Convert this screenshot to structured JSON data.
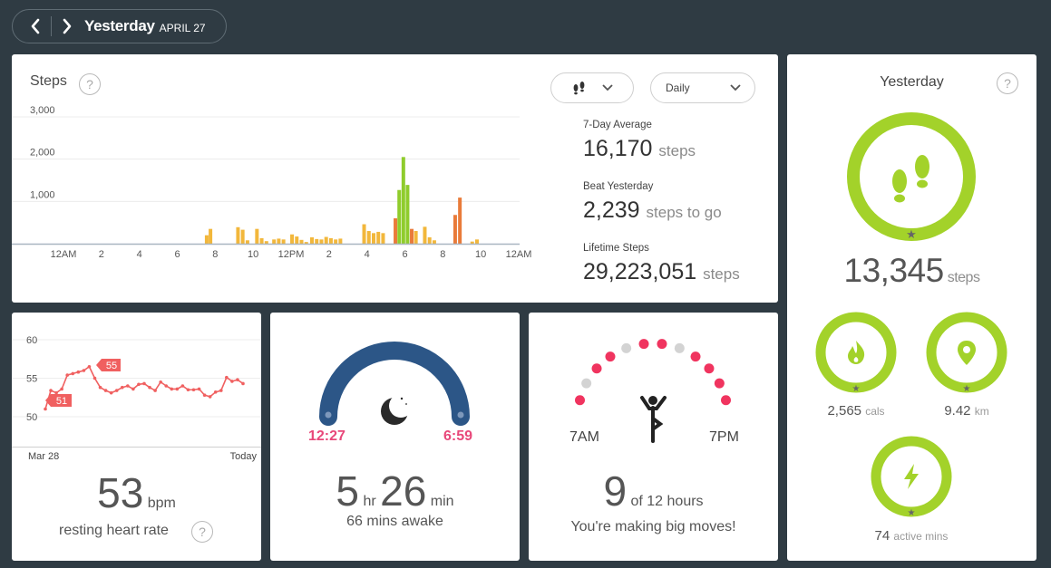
{
  "date_nav": {
    "title": "Yesterday",
    "date": "APRIL 27"
  },
  "steps_card": {
    "title": "Steps",
    "help": "?",
    "period_select": "Daily",
    "stats": [
      {
        "label": "7-Day Average",
        "value": "16,170",
        "unit": "steps"
      },
      {
        "label": "Beat Yesterday",
        "value": "2,239",
        "unit": "steps to go"
      },
      {
        "label": "Lifetime Steps",
        "value": "29,223,051",
        "unit": "steps"
      }
    ],
    "chart_data": {
      "type": "bar",
      "title": "",
      "ylim": [
        0,
        3000
      ],
      "y_ticks": [
        "3,000",
        "2,000",
        "1,000"
      ],
      "x_ticks": [
        "12AM",
        "2",
        "4",
        "6",
        "8",
        "10",
        "12PM",
        "2",
        "4",
        "6",
        "8",
        "10",
        "12AM"
      ],
      "hours_range": [
        0,
        24
      ],
      "colors": {
        "low": "#f2b73b",
        "mid": "#e97b3a",
        "high": "#8fcc2c"
      },
      "bars": [
        {
          "t": 7.55,
          "v": 200
        },
        {
          "t": 7.75,
          "v": 350
        },
        {
          "t": 9.2,
          "v": 390
        },
        {
          "t": 9.45,
          "v": 330
        },
        {
          "t": 9.7,
          "v": 80
        },
        {
          "t": 10.2,
          "v": 350
        },
        {
          "t": 10.45,
          "v": 130
        },
        {
          "t": 10.7,
          "v": 60
        },
        {
          "t": 11.1,
          "v": 100
        },
        {
          "t": 11.35,
          "v": 120
        },
        {
          "t": 11.6,
          "v": 100
        },
        {
          "t": 12.05,
          "v": 220
        },
        {
          "t": 12.3,
          "v": 170
        },
        {
          "t": 12.55,
          "v": 90
        },
        {
          "t": 12.8,
          "v": 40
        },
        {
          "t": 13.1,
          "v": 150
        },
        {
          "t": 13.35,
          "v": 110
        },
        {
          "t": 13.6,
          "v": 100
        },
        {
          "t": 13.85,
          "v": 160
        },
        {
          "t": 14.1,
          "v": 130
        },
        {
          "t": 14.35,
          "v": 100
        },
        {
          "t": 14.6,
          "v": 120
        },
        {
          "t": 15.85,
          "v": 460
        },
        {
          "t": 16.1,
          "v": 300
        },
        {
          "t": 16.35,
          "v": 250
        },
        {
          "t": 16.6,
          "v": 280
        },
        {
          "t": 16.85,
          "v": 250
        },
        {
          "t": 17.5,
          "v": 600,
          "c": "mid"
        },
        {
          "t": 17.7,
          "v": 1270,
          "c": "high"
        },
        {
          "t": 17.92,
          "v": 2050,
          "c": "high"
        },
        {
          "t": 18.14,
          "v": 1390,
          "c": "high"
        },
        {
          "t": 18.36,
          "v": 350,
          "c": "mid"
        },
        {
          "t": 18.58,
          "v": 300
        },
        {
          "t": 19.05,
          "v": 400
        },
        {
          "t": 19.3,
          "v": 150
        },
        {
          "t": 19.55,
          "v": 80
        },
        {
          "t": 20.65,
          "v": 680,
          "c": "mid"
        },
        {
          "t": 20.9,
          "v": 1090,
          "c": "mid"
        },
        {
          "t": 21.55,
          "v": 50
        },
        {
          "t": 21.8,
          "v": 100
        }
      ]
    }
  },
  "goals_card": {
    "title": "Yesterday",
    "help": "?",
    "steps_value": "13,345",
    "steps_unit": "steps",
    "accent_color": "#a3d22a",
    "items": [
      {
        "icon": "flame-icon",
        "value": "2,565",
        "unit": "cals"
      },
      {
        "icon": "location-pin-icon",
        "value": "9.42",
        "unit": "km"
      },
      {
        "icon": "lightning-bolt-icon",
        "value": "74",
        "unit": "active mins"
      }
    ]
  },
  "heart_card": {
    "value": "53",
    "unit": "bpm",
    "label": "resting heart rate",
    "help": "?",
    "y_ticks": [
      "60",
      "55",
      "50"
    ],
    "x_start": "Mar 28",
    "x_end": "Today",
    "tag_high": "55",
    "tag_low": "51",
    "line_color": "#f06060",
    "chart_data": {
      "type": "line",
      "ylim": [
        48,
        61
      ],
      "values": [
        51,
        53.4,
        53.1,
        53.6,
        55.4,
        55.6,
        55.8,
        56,
        56.5,
        55,
        53.8,
        53.4,
        53.1,
        53.4,
        53.8,
        54,
        53.6,
        54.2,
        54.3,
        53.8,
        53.4,
        54.5,
        54,
        53.6,
        53.6,
        54,
        53.5,
        53.5,
        53.6,
        52.8,
        52.6,
        53.2,
        53.4,
        55.1,
        54.6,
        54.8,
        54.3
      ]
    }
  },
  "sleep_card": {
    "start": "12:27",
    "end": "6:59",
    "hours": "5",
    "hours_unit": "hr",
    "mins": "26",
    "mins_unit": "min",
    "awake": "66 mins awake",
    "arc_color": "#2c5687",
    "time_color": "#e8487a"
  },
  "hourly_card": {
    "value": "9",
    "of_text": "of 12 hours",
    "message": "You're making big moves!",
    "start_label": "7AM",
    "end_label": "7PM",
    "dot_active_color": "#f0345f",
    "dot_inactive_color": "#d3d3d3",
    "dots": [
      true,
      false,
      true,
      true,
      false,
      true,
      true,
      false,
      true,
      true,
      true,
      true
    ]
  }
}
